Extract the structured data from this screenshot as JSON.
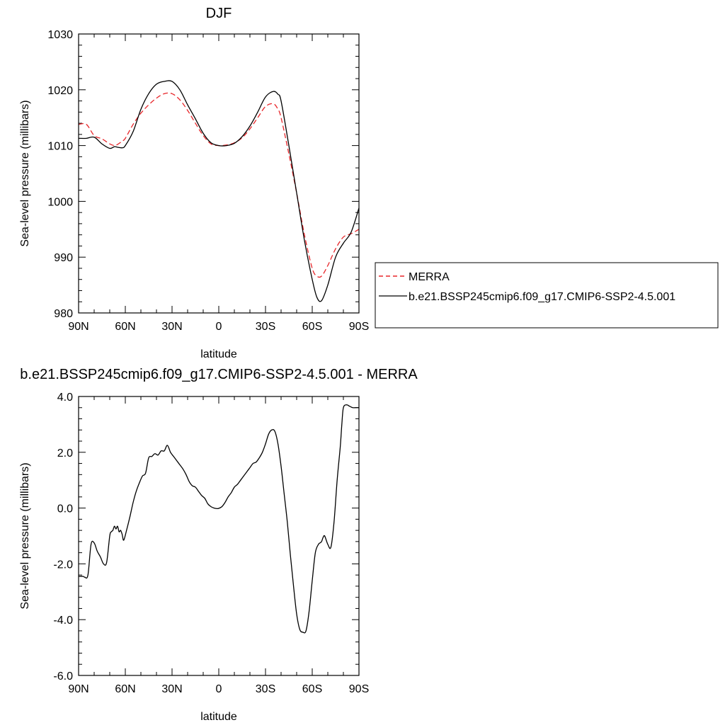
{
  "chart_data": [
    {
      "type": "line",
      "title": "DJF",
      "xlabel": "latitude",
      "ylabel": "Sea-level pressure (millibars)",
      "xlim": [
        -90,
        90
      ],
      "ylim": [
        980,
        1030
      ],
      "x_ticks": [
        -90,
        -60,
        -30,
        0,
        30,
        60,
        90
      ],
      "x_tick_labels": [
        "90N",
        "60N",
        "30N",
        "0",
        "30S",
        "60S",
        "90S"
      ],
      "y_ticks": [
        980,
        990,
        1000,
        1010,
        1020,
        1030
      ],
      "y_tick_labels": [
        "980",
        "990",
        "1000",
        "1010",
        "1020",
        "1030"
      ],
      "grid": false,
      "legend": "right, outside plot",
      "x": [
        -90,
        -85,
        -80,
        -75,
        -70,
        -67,
        -65,
        -62,
        -60,
        -55,
        -50,
        -45,
        -40,
        -35,
        -30,
        -25,
        -20,
        -15,
        -10,
        -5,
        0,
        5,
        10,
        15,
        20,
        25,
        30,
        35,
        38,
        40,
        45,
        50,
        55,
        60,
        63,
        66,
        70,
        75,
        80,
        85,
        90
      ],
      "series": [
        {
          "name": "MERRA",
          "color": "#e8262a",
          "dash": "dashed",
          "values": [
            1013.8,
            1013.8,
            1011.8,
            1011.2,
            1010.3,
            1010.0,
            1010.2,
            1010.8,
            1011.3,
            1013.8,
            1015.8,
            1017.3,
            1018.5,
            1019.3,
            1019.3,
            1018.2,
            1016.3,
            1014.0,
            1011.8,
            1010.3,
            1010.0,
            1010.1,
            1010.5,
            1011.4,
            1013.0,
            1015.0,
            1017.0,
            1017.5,
            1016.5,
            1015.0,
            1008.5,
            1001.5,
            994.0,
            988.0,
            986.6,
            986.6,
            988.5,
            991.5,
            993.6,
            994.2,
            995.0
          ]
        },
        {
          "name": "b.e21.BSSP245cmip6.f09_g17.CMIP6-SSP2-4.5.001",
          "color": "#000000",
          "dash": "solid",
          "values": [
            1011.3,
            1011.3,
            1011.5,
            1010.3,
            1009.5,
            1009.8,
            1009.7,
            1009.6,
            1010.0,
            1012.5,
            1016.5,
            1019.3,
            1021.0,
            1021.5,
            1021.5,
            1020.0,
            1017.3,
            1014.8,
            1012.2,
            1010.5,
            1010.0,
            1010.0,
            1010.4,
            1011.6,
            1013.5,
            1016.0,
            1018.7,
            1019.7,
            1019.2,
            1018.0,
            1010.0,
            1001.5,
            993.0,
            986.0,
            982.8,
            982.2,
            985.0,
            990.0,
            992.5,
            994.5,
            998.8
          ]
        }
      ]
    },
    {
      "type": "line",
      "title": "b.e21.BSSP245cmip6.f09_g17.CMIP6-SSP2-4.5.001 - MERRA",
      "xlabel": "latitude",
      "ylabel": "Sea-level pressure (millibars)",
      "xlim": [
        -90,
        90
      ],
      "ylim": [
        -6,
        4
      ],
      "x_ticks": [
        -90,
        -60,
        -30,
        0,
        30,
        60,
        90
      ],
      "x_tick_labels": [
        "90N",
        "60N",
        "30N",
        "0",
        "30S",
        "60S",
        "90S"
      ],
      "y_ticks": [
        -6,
        -4,
        -2,
        0,
        2,
        4
      ],
      "y_tick_labels": [
        "-6.0",
        "-4.0",
        "-2.0",
        "0.0",
        "2.0",
        "4.0"
      ],
      "grid": false,
      "x": [
        -90,
        -87,
        -86,
        -84,
        -82,
        -80,
        -78,
        -76,
        -74,
        -72,
        -70,
        -69,
        -68,
        -67,
        -66,
        -65,
        -64,
        -63,
        -62,
        -61,
        -59,
        -57,
        -55,
        -53,
        -51,
        -49,
        -47,
        -45,
        -43,
        -41,
        -39,
        -37,
        -35,
        -33,
        -31,
        -29,
        -27,
        -25,
        -23,
        -21,
        -19,
        -17,
        -15,
        -13,
        -11,
        -9,
        -7,
        -5,
        -3,
        -1,
        0,
        2,
        4,
        6,
        8,
        10,
        12,
        14,
        16,
        18,
        20,
        22,
        24,
        26,
        28,
        30,
        32,
        34,
        36,
        38,
        40,
        42,
        44,
        46,
        48,
        50,
        52,
        54,
        56,
        58,
        60,
        62,
        64,
        65,
        66,
        67,
        68,
        70,
        72,
        74,
        76,
        78,
        79,
        80,
        82,
        84,
        86,
        88,
        89,
        90
      ],
      "series": [
        {
          "name": "",
          "color": "#000000",
          "dash": "solid",
          "values": [
            -2.45,
            -2.45,
            -2.48,
            -2.4,
            -1.3,
            -1.25,
            -1.55,
            -1.75,
            -2.0,
            -1.95,
            -1.0,
            -0.85,
            -0.8,
            -0.65,
            -0.75,
            -0.65,
            -0.85,
            -0.8,
            -0.95,
            -1.15,
            -0.75,
            -0.3,
            0.2,
            0.6,
            0.9,
            1.15,
            1.25,
            1.8,
            1.85,
            1.95,
            1.9,
            2.05,
            2.05,
            2.25,
            2.0,
            1.85,
            1.7,
            1.55,
            1.4,
            1.2,
            0.95,
            0.8,
            0.75,
            0.6,
            0.45,
            0.35,
            0.15,
            0.05,
            0.0,
            -0.02,
            -0.01,
            0.05,
            0.2,
            0.4,
            0.55,
            0.75,
            0.85,
            1.0,
            1.15,
            1.3,
            1.45,
            1.6,
            1.65,
            1.8,
            2.0,
            2.3,
            2.65,
            2.8,
            2.75,
            2.3,
            1.5,
            0.5,
            -0.5,
            -1.7,
            -2.8,
            -3.8,
            -4.35,
            -4.45,
            -4.4,
            -3.7,
            -2.6,
            -1.6,
            -1.3,
            -1.25,
            -1.2,
            -1.05,
            -1.0,
            -1.3,
            -1.4,
            -0.5,
            1.0,
            2.2,
            3.0,
            3.6,
            3.7,
            3.65,
            3.6,
            3.6,
            3.6,
            3.6
          ]
        }
      ]
    }
  ]
}
